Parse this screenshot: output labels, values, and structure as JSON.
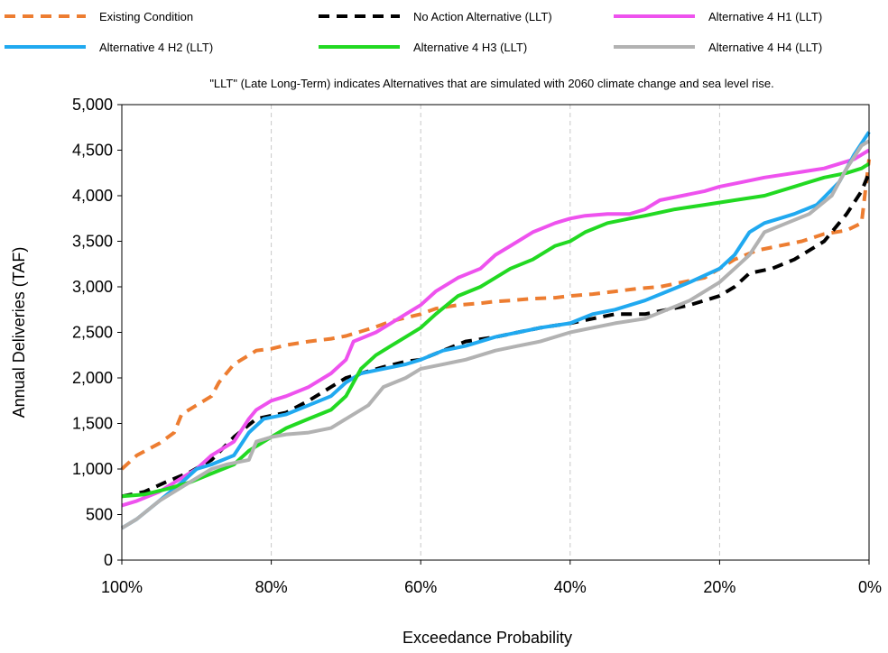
{
  "chart_data": {
    "type": "line",
    "note": "\"LLT\" (Late Long-Term) indicates Alternatives that are simulated with 2060 climate change and sea level rise.",
    "xlabel": "Exceedance Probability",
    "ylabel": "Annual Deliveries (TAF)",
    "xlim": [
      100,
      0
    ],
    "ylim": [
      0,
      5000
    ],
    "x_ticks": [
      100,
      80,
      60,
      40,
      20,
      0
    ],
    "x_tick_labels": [
      "100%",
      "80%",
      "60%",
      "40%",
      "20%",
      "0%"
    ],
    "y_ticks": [
      0,
      500,
      1000,
      1500,
      2000,
      2500,
      3000,
      3500,
      4000,
      4500,
      5000
    ],
    "y_tick_labels": [
      "0",
      "500",
      "1,000",
      "1,500",
      "2,000",
      "2,500",
      "3,000",
      "3,500",
      "4,000",
      "4,500",
      "5,000"
    ],
    "grid": "vertical dashed",
    "legend_position": "top",
    "series": [
      {
        "name": "Existing Condition",
        "color": "#ED7D31",
        "style": "dashed",
        "x": [
          100,
          98,
          95,
          93,
          92,
          90,
          88,
          87,
          85,
          83,
          82,
          80,
          78,
          75,
          72,
          70,
          68,
          66,
          64,
          62,
          60,
          58,
          55,
          52,
          50,
          48,
          45,
          42,
          40,
          37,
          34,
          31,
          28,
          25,
          22,
          20,
          18,
          15,
          12,
          9,
          6,
          3,
          1,
          0
        ],
        "y": [
          1000,
          1150,
          1280,
          1400,
          1600,
          1700,
          1800,
          1950,
          2150,
          2250,
          2300,
          2320,
          2360,
          2400,
          2430,
          2460,
          2510,
          2560,
          2620,
          2660,
          2700,
          2760,
          2800,
          2820,
          2840,
          2850,
          2870,
          2880,
          2900,
          2920,
          2950,
          2980,
          3000,
          3050,
          3100,
          3200,
          3300,
          3400,
          3450,
          3500,
          3580,
          3620,
          3700,
          4400
        ]
      },
      {
        "name": "No Action Alternative (LLT)",
        "color": "#000000",
        "style": "dashed",
        "x": [
          100,
          97,
          94,
          91,
          88,
          85,
          82,
          78,
          75,
          72,
          70,
          68,
          65,
          62,
          60,
          57,
          54,
          50,
          47,
          44,
          40,
          37,
          34,
          30,
          27,
          24,
          20,
          18,
          16,
          13,
          10,
          6,
          3,
          1,
          0
        ],
        "y": [
          700,
          750,
          860,
          960,
          1100,
          1350,
          1550,
          1620,
          1750,
          1900,
          2000,
          2050,
          2120,
          2180,
          2200,
          2300,
          2400,
          2450,
          2500,
          2550,
          2600,
          2650,
          2700,
          2700,
          2750,
          2800,
          2900,
          3000,
          3150,
          3200,
          3300,
          3500,
          3800,
          4050,
          4250
        ]
      },
      {
        "name": "Alternative 4 H1 (LLT)",
        "color": "#EE52EE",
        "style": "solid",
        "x": [
          100,
          98,
          95,
          93,
          90,
          88,
          85,
          83,
          82,
          80,
          78,
          75,
          72,
          70,
          69,
          66,
          64,
          62,
          60,
          58,
          55,
          52,
          50,
          48,
          45,
          42,
          40,
          38,
          35,
          32,
          30,
          28,
          25,
          22,
          20,
          17,
          14,
          10,
          6,
          2,
          0
        ],
        "y": [
          600,
          650,
          750,
          850,
          1000,
          1150,
          1300,
          1550,
          1650,
          1750,
          1800,
          1900,
          2050,
          2200,
          2400,
          2500,
          2600,
          2700,
          2800,
          2950,
          3100,
          3200,
          3350,
          3450,
          3600,
          3700,
          3750,
          3780,
          3800,
          3800,
          3850,
          3950,
          4000,
          4050,
          4100,
          4150,
          4200,
          4250,
          4300,
          4400,
          4500
        ]
      },
      {
        "name": "Alternative 4 H2 (LLT)",
        "color": "#20A9F0",
        "style": "solid",
        "x": [
          100,
          98,
          95,
          92,
          90,
          88,
          85,
          83,
          81,
          78,
          75,
          72,
          70,
          68,
          65,
          62,
          60,
          57,
          54,
          50,
          47,
          44,
          40,
          37,
          34,
          30,
          27,
          24,
          20,
          18,
          16,
          14,
          12,
          10,
          7,
          4,
          2,
          0
        ],
        "y": [
          350,
          450,
          650,
          850,
          1000,
          1050,
          1150,
          1400,
          1550,
          1600,
          1700,
          1800,
          1950,
          2050,
          2100,
          2150,
          2200,
          2300,
          2350,
          2450,
          2500,
          2550,
          2600,
          2700,
          2750,
          2850,
          2950,
          3050,
          3200,
          3350,
          3600,
          3700,
          3750,
          3800,
          3900,
          4150,
          4450,
          4700
        ]
      },
      {
        "name": "Alternative 4 H3 (LLT)",
        "color": "#22D922",
        "style": "solid",
        "x": [
          100,
          97,
          94,
          91,
          88,
          85,
          83,
          80,
          78,
          75,
          72,
          70,
          68,
          66,
          64,
          62,
          60,
          58,
          55,
          52,
          50,
          48,
          45,
          42,
          40,
          38,
          35,
          32,
          30,
          26,
          22,
          18,
          14,
          10,
          6,
          3,
          1,
          0
        ],
        "y": [
          700,
          720,
          780,
          850,
          950,
          1050,
          1200,
          1350,
          1450,
          1550,
          1650,
          1800,
          2100,
          2250,
          2350,
          2450,
          2550,
          2700,
          2900,
          3000,
          3100,
          3200,
          3300,
          3450,
          3500,
          3600,
          3700,
          3750,
          3780,
          3850,
          3900,
          3950,
          4000,
          4100,
          4200,
          4250,
          4300,
          4350
        ]
      },
      {
        "name": "Alternative 4 H4 (LLT)",
        "color": "#B2B2B2",
        "style": "solid",
        "x": [
          100,
          98,
          95,
          92,
          90,
          88,
          86,
          83,
          82,
          80,
          78,
          75,
          72,
          70,
          67,
          65,
          62,
          60,
          57,
          54,
          50,
          47,
          44,
          40,
          37,
          34,
          30,
          27,
          24,
          20,
          18,
          16,
          14,
          11,
          8,
          5,
          3,
          1,
          0
        ],
        "y": [
          350,
          450,
          650,
          800,
          900,
          1000,
          1050,
          1100,
          1300,
          1350,
          1380,
          1400,
          1450,
          1550,
          1700,
          1900,
          2000,
          2100,
          2150,
          2200,
          2300,
          2350,
          2400,
          2500,
          2550,
          2600,
          2650,
          2750,
          2850,
          3050,
          3200,
          3350,
          3600,
          3700,
          3800,
          4000,
          4300,
          4550,
          4600
        ]
      }
    ]
  }
}
